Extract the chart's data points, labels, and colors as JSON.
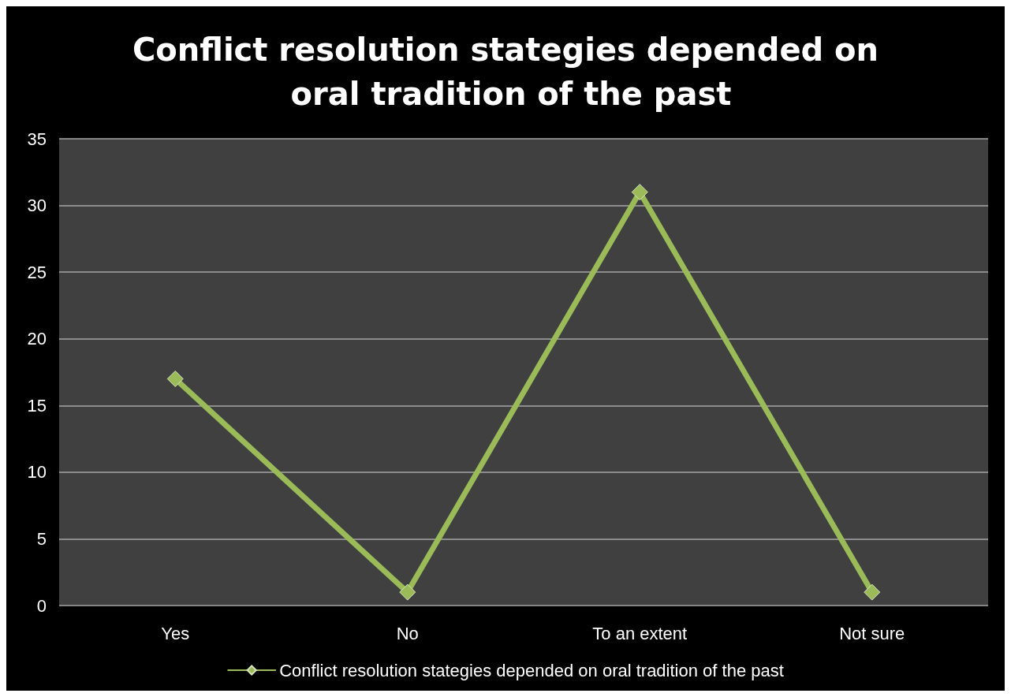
{
  "chart_data": {
    "type": "line",
    "title": "Conflict resolution stategies depended on oral tradition of the past",
    "categories": [
      "Yes",
      "No",
      "To an extent",
      "Not sure"
    ],
    "series": [
      {
        "name": "Conflict resolution stategies depended on oral tradition of the past",
        "color": "#9bbb59",
        "values": [
          17,
          1,
          31,
          1
        ]
      }
    ],
    "ylim": [
      0,
      35
    ],
    "yticks": [
      0,
      5,
      10,
      15,
      20,
      25,
      30,
      35
    ],
    "grid": "y",
    "legend": "bottom",
    "marker": "diamond",
    "line_style": "solid"
  }
}
